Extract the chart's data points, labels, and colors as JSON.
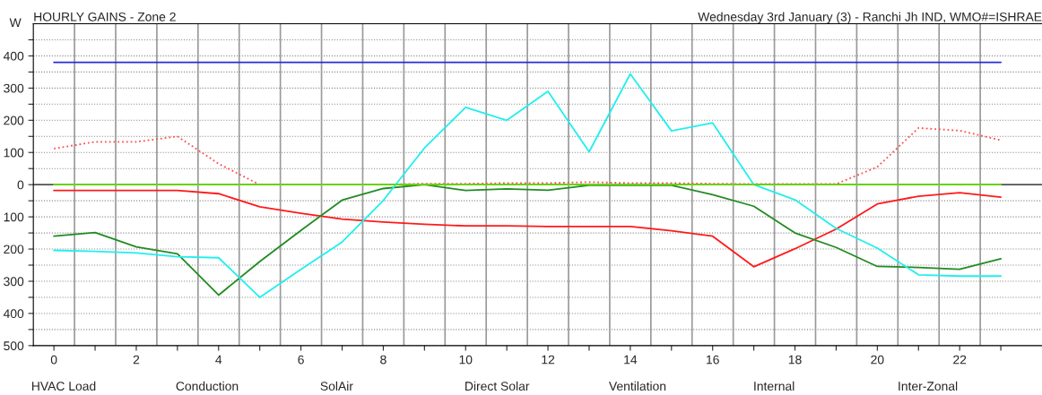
{
  "chart_data": {
    "type": "line",
    "title": "HOURLY GAINS - Zone 2",
    "subtitle": "Wednesday 3rd January (3) - Ranchi Jh IND, WMO#=ISHRAE",
    "ylabel": "W",
    "x": [
      0,
      1,
      2,
      3,
      4,
      5,
      6,
      7,
      8,
      9,
      10,
      11,
      12,
      13,
      14,
      15,
      16,
      17,
      18,
      19,
      20,
      21,
      22,
      23
    ],
    "series": [
      {
        "color": "#2b2bd9",
        "values": [
          380,
          380,
          380,
          380,
          380,
          380,
          380,
          380,
          380,
          380,
          380,
          380,
          380,
          380,
          380,
          380,
          380,
          380,
          380,
          380,
          380,
          380,
          380,
          380
        ]
      },
      {
        "color": "#ff4d4d",
        "line_style": "dotted",
        "values": [
          112,
          133,
          133,
          150,
          65,
          0,
          0,
          0,
          0,
          3,
          3,
          5,
          5,
          8,
          5,
          5,
          3,
          2,
          2,
          2,
          55,
          176,
          168,
          138
        ]
      },
      {
        "color": "#ff1a1a",
        "values": [
          -18,
          -18,
          -18,
          -18,
          -28,
          -69,
          -89,
          -107,
          -116,
          -123,
          -128,
          -128,
          -130,
          -130,
          -130,
          -143,
          -160,
          -255,
          -199,
          -138,
          -60,
          -36,
          -25,
          -39
        ]
      },
      {
        "color": "#228b22",
        "values": [
          -160,
          -149,
          -193,
          -215,
          -343,
          -239,
          -142,
          -48,
          -12,
          0,
          -18,
          -13,
          -17,
          -2,
          -2,
          -2,
          -31,
          -67,
          -150,
          -195,
          -254,
          -257,
          -263,
          -230
        ]
      },
      {
        "color": "#22eeee",
        "values": [
          -204,
          -207,
          -212,
          -224,
          -227,
          -350,
          -263,
          -178,
          -49,
          114,
          240,
          200,
          290,
          102,
          344,
          167,
          192,
          0,
          -47,
          -136,
          -197,
          -280,
          -284,
          -284
        ]
      },
      {
        "color": "#66dd00",
        "values": [
          0,
          0,
          0,
          0,
          0,
          0,
          0,
          0,
          0,
          0,
          0,
          0,
          0,
          0,
          0,
          0,
          0,
          0,
          0,
          0,
          0,
          0,
          0,
          0
        ]
      }
    ],
    "xlim": [
      -0.5,
      24
    ],
    "xticks": [
      0,
      {
        "value": 1,
        "label": null
      },
      2,
      {
        "value": 3,
        "label": null
      },
      4,
      {
        "value": 5,
        "label": null
      },
      6,
      {
        "value": 7,
        "label": null
      },
      8,
      {
        "value": 9,
        "label": null
      },
      10,
      {
        "value": 11,
        "label": null
      },
      12,
      {
        "value": 13,
        "label": null
      },
      14,
      {
        "value": 15,
        "label": null
      },
      16,
      {
        "value": 17,
        "label": null
      },
      18,
      {
        "value": 19,
        "label": null
      },
      20,
      {
        "value": 21,
        "label": null
      },
      22,
      {
        "value": 23,
        "label": null
      }
    ],
    "ylim": [
      -500,
      500
    ],
    "yticks": [
      {
        "value": -500,
        "label": "500"
      },
      {
        "value": -450,
        "label": null
      },
      {
        "value": -400,
        "label": "400"
      },
      {
        "value": -350,
        "label": null
      },
      {
        "value": -300,
        "label": "300"
      },
      {
        "value": -250,
        "label": null
      },
      {
        "value": -200,
        "label": "200"
      },
      {
        "value": -150,
        "label": null
      },
      {
        "value": -100,
        "label": "100"
      },
      {
        "value": -50,
        "label": null
      },
      0,
      {
        "value": 50,
        "label": null
      },
      100,
      {
        "value": 150,
        "label": null
      },
      200,
      {
        "value": 250,
        "label": null
      },
      300,
      {
        "value": 350,
        "label": null
      },
      400,
      {
        "value": 450,
        "label": null
      }
    ],
    "grid": "y",
    "ref_lines": [
      {
        "axis": "y",
        "value": 0,
        "color": "#555555"
      },
      {
        "axis": "x",
        "value": 0.5,
        "color": "#999999"
      },
      {
        "axis": "x",
        "value": 1.5,
        "color": "#999999"
      },
      {
        "axis": "x",
        "value": 2.5,
        "color": "#999999"
      },
      {
        "axis": "x",
        "value": 3.5,
        "color": "#999999"
      },
      {
        "axis": "x",
        "value": 4.5,
        "color": "#999999"
      },
      {
        "axis": "x",
        "value": 5.5,
        "color": "#999999"
      },
      {
        "axis": "x",
        "value": 6.5,
        "color": "#999999"
      },
      {
        "axis": "x",
        "value": 7.5,
        "color": "#999999"
      },
      {
        "axis": "x",
        "value": 8.5,
        "color": "#999999"
      },
      {
        "axis": "x",
        "value": 9.5,
        "color": "#999999"
      },
      {
        "axis": "x",
        "value": 10.5,
        "color": "#999999"
      },
      {
        "axis": "x",
        "value": 11.5,
        "color": "#999999"
      },
      {
        "axis": "x",
        "value": 12.5,
        "color": "#999999"
      },
      {
        "axis": "x",
        "value": 13.5,
        "color": "#999999"
      },
      {
        "axis": "x",
        "value": 14.5,
        "color": "#999999"
      },
      {
        "axis": "x",
        "value": 15.5,
        "color": "#999999"
      },
      {
        "axis": "x",
        "value": 16.5,
        "color": "#999999"
      },
      {
        "axis": "x",
        "value": 17.5,
        "color": "#999999"
      },
      {
        "axis": "x",
        "value": 18.5,
        "color": "#999999"
      },
      {
        "axis": "x",
        "value": 19.5,
        "color": "#999999"
      },
      {
        "axis": "x",
        "value": 20.5,
        "color": "#999999"
      },
      {
        "axis": "x",
        "value": 21.5,
        "color": "#999999"
      },
      {
        "axis": "x",
        "value": 22.5,
        "color": "#999999"
      }
    ],
    "annotations": [
      "HVAC Load",
      "Conduction",
      "SolAir",
      "Direct Solar",
      "Ventilation",
      "Internal",
      "Inter-Zonal"
    ],
    "legend": false
  }
}
